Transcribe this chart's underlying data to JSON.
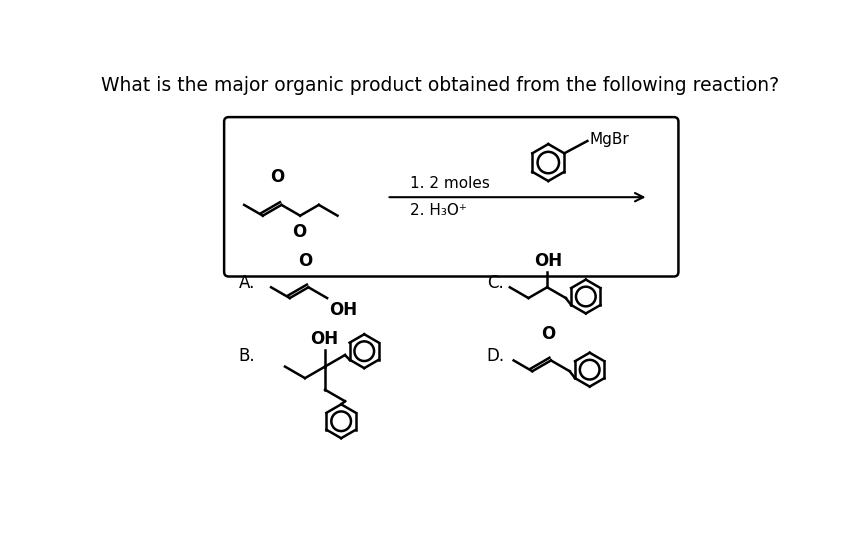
{
  "title": "What is the major organic product obtained from the following reaction?",
  "title_fontsize": 13.5,
  "bg_color": "#ffffff",
  "text_color": "#000000",
  "box_color": "#000000",
  "reaction_conditions_1": "1. 2 moles",
  "reaction_conditions_2": "2. H₃O⁺",
  "answer_labels": [
    "A.",
    "B.",
    "C.",
    "D."
  ],
  "mgbr_label": "MgBr",
  "oh_label": "OH",
  "o_label": "O"
}
